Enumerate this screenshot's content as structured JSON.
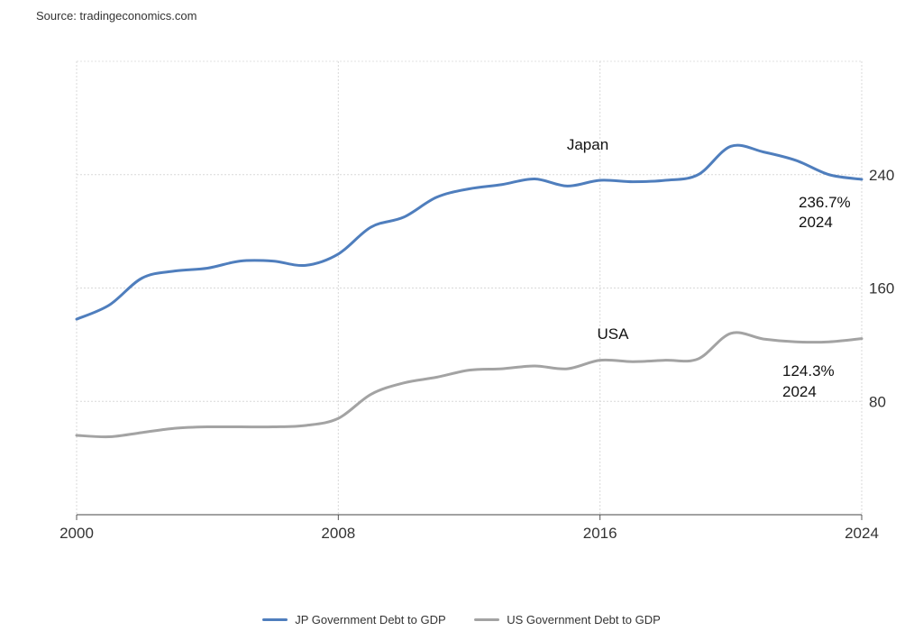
{
  "source": "Source: tradingeconomics.com",
  "chart_data": {
    "type": "line",
    "title": "",
    "xlabel": "",
    "ylabel": "",
    "xlim": [
      2000,
      2024
    ],
    "ylim": [
      0,
      320
    ],
    "x_ticks": [
      "2000",
      "2008",
      "2016",
      "2024"
    ],
    "y_ticks": [
      "80",
      "160",
      "240"
    ],
    "grid": true,
    "y_axis_side": "right",
    "legend_position": "bottom",
    "series": [
      {
        "name": "JP Government Debt to GDP",
        "color": "#4f7ebd",
        "label": "Japan",
        "last_value_label": "236.7%",
        "last_year_label": "2024",
        "x": [
          2000,
          2001,
          2002,
          2003,
          2004,
          2005,
          2006,
          2007,
          2008,
          2009,
          2010,
          2011,
          2012,
          2013,
          2014,
          2015,
          2016,
          2017,
          2018,
          2019,
          2020,
          2021,
          2022,
          2023,
          2024
        ],
        "values": [
          138,
          148,
          167,
          172,
          174,
          179,
          179,
          176,
          184,
          203,
          210,
          224,
          230,
          233,
          237,
          232,
          236,
          235,
          236,
          240,
          260,
          256,
          250,
          240,
          236.7
        ]
      },
      {
        "name": "US Government Debt to GDP",
        "color": "#a3a3a3",
        "label": "USA",
        "last_value_label": "124.3%",
        "last_year_label": "2024",
        "x": [
          2000,
          2001,
          2002,
          2003,
          2004,
          2005,
          2006,
          2007,
          2008,
          2009,
          2010,
          2011,
          2012,
          2013,
          2014,
          2015,
          2016,
          2017,
          2018,
          2019,
          2020,
          2021,
          2022,
          2023,
          2024
        ],
        "values": [
          56,
          55,
          58,
          61,
          62,
          62,
          62,
          63,
          68,
          85,
          93,
          97,
          102,
          103,
          105,
          103,
          109,
          108,
          109,
          110,
          128,
          124,
          122,
          122,
          124.3
        ]
      }
    ]
  }
}
